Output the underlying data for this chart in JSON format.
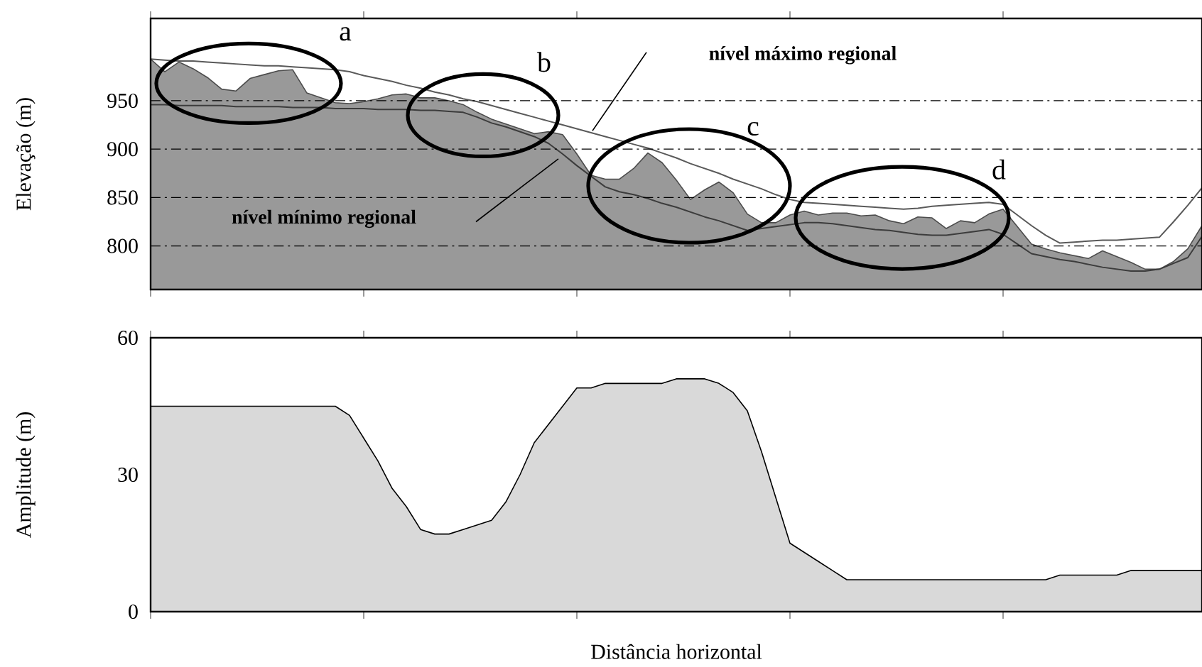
{
  "chart_data": [
    {
      "type": "area",
      "ylabel": "Elevação (m)",
      "categories": [
        null,
        null,
        null,
        null,
        null,
        null,
        null,
        null,
        null,
        null,
        null,
        null,
        null,
        null,
        null,
        null,
        null,
        null,
        null,
        null,
        null,
        null,
        null,
        null,
        null,
        null,
        null,
        null,
        null,
        null,
        null,
        null,
        null,
        null,
        null,
        null,
        null,
        null,
        null,
        null,
        null,
        null,
        null,
        null,
        null,
        null,
        null,
        null,
        null,
        null,
        null,
        null,
        null,
        null,
        null,
        null,
        null,
        null,
        null,
        null,
        null,
        null,
        null,
        null,
        null,
        null,
        null,
        null,
        null,
        null,
        null,
        null,
        null,
        null,
        null
      ],
      "series": [
        {
          "type": "area",
          "color": "#999999",
          "values": [
            993,
            980,
            990,
            983,
            974,
            962,
            960,
            973,
            977,
            981,
            982,
            958,
            953,
            948,
            947,
            949,
            952,
            956,
            957,
            953,
            953,
            950,
            946,
            938,
            931,
            926,
            921,
            916,
            918,
            915,
            895,
            873,
            869,
            869,
            880,
            896,
            886,
            868,
            848,
            858,
            866,
            855,
            833,
            824,
            824,
            832,
            836,
            832,
            834,
            834,
            831,
            832,
            826,
            823,
            830,
            829,
            818,
            826,
            824,
            833,
            838,
            820,
            802,
            797,
            793,
            790,
            787,
            795,
            789,
            783,
            776,
            776,
            784,
            797,
            821
          ]
        },
        {
          "type": "line",
          "color": "#5a5a5a",
          "values": [
            993,
            992,
            991,
            991,
            990,
            989,
            988,
            987,
            986,
            986,
            985,
            984,
            983,
            982,
            980,
            976,
            973,
            970,
            966,
            963,
            959,
            956,
            952,
            949,
            945,
            941,
            937,
            933,
            929,
            925,
            921,
            917,
            913,
            909,
            905,
            901,
            896,
            891,
            885,
            880,
            875,
            869,
            864,
            859,
            853,
            848,
            845,
            844,
            843,
            842,
            841,
            840,
            839,
            838,
            839,
            841,
            842,
            843,
            844,
            845,
            843,
            832,
            821,
            811,
            803,
            804,
            805,
            806,
            806,
            807,
            808,
            809,
            825,
            842,
            860
          ]
        },
        {
          "type": "line",
          "color": "#3c3c3c",
          "values": [
            946,
            946,
            945,
            945,
            945,
            945,
            944,
            944,
            944,
            944,
            943,
            943,
            943,
            942,
            942,
            942,
            941,
            941,
            941,
            940,
            940,
            939,
            938,
            933,
            927,
            923,
            918,
            913,
            906,
            895,
            883,
            872,
            861,
            856,
            853,
            849,
            844,
            840,
            835,
            830,
            826,
            821,
            816,
            818,
            820,
            822,
            824,
            824,
            823,
            821,
            819,
            817,
            816,
            814,
            812,
            811,
            811,
            813,
            815,
            817,
            812,
            802,
            792,
            789,
            786,
            784,
            781,
            778,
            776,
            774,
            774,
            776,
            782,
            788,
            810
          ]
        }
      ],
      "ylim": [
        755,
        1035
      ],
      "yticks": [
        800,
        850,
        900,
        950
      ],
      "grid": "y",
      "tick_labels": "y",
      "marker": "none",
      "annotations": [
        "a",
        "b",
        "c",
        "d",
        "nível máximo regional",
        "nível mínimo regional"
      ]
    },
    {
      "type": "area",
      "ylabel": "Amplitude (m)",
      "xlabel": "Distância horizontal",
      "color": "#d9d9d9",
      "categories": [
        null,
        null,
        null,
        null,
        null,
        null,
        null,
        null,
        null,
        null,
        null,
        null,
        null,
        null,
        null,
        null,
        null,
        null,
        null,
        null,
        null,
        null,
        null,
        null,
        null,
        null,
        null,
        null,
        null,
        null,
        null,
        null,
        null,
        null,
        null,
        null,
        null,
        null,
        null,
        null,
        null,
        null,
        null,
        null,
        null,
        null,
        null,
        null,
        null,
        null,
        null,
        null,
        null,
        null,
        null,
        null,
        null,
        null,
        null,
        null,
        null,
        null,
        null,
        null,
        null,
        null,
        null,
        null,
        null,
        null,
        null,
        null,
        null,
        null,
        null
      ],
      "values": [
        45,
        45,
        45,
        45,
        45,
        45,
        45,
        45,
        45,
        45,
        45,
        45,
        45,
        45,
        43,
        38,
        33,
        27,
        23,
        18,
        17,
        17,
        18,
        19,
        20,
        24,
        30,
        37,
        41,
        45,
        49,
        49,
        50,
        50,
        50,
        50,
        50,
        51,
        51,
        51,
        50,
        48,
        44,
        35,
        25,
        15,
        13,
        11,
        9,
        7,
        7,
        7,
        7,
        7,
        7,
        7,
        7,
        7,
        7,
        7,
        7,
        7,
        7,
        7,
        8,
        8,
        8,
        8,
        8,
        9,
        9,
        9,
        9,
        9,
        9
      ],
      "ylim": [
        0,
        60
      ],
      "yticks": [
        0,
        30,
        60
      ],
      "tick_labels": "y"
    }
  ]
}
